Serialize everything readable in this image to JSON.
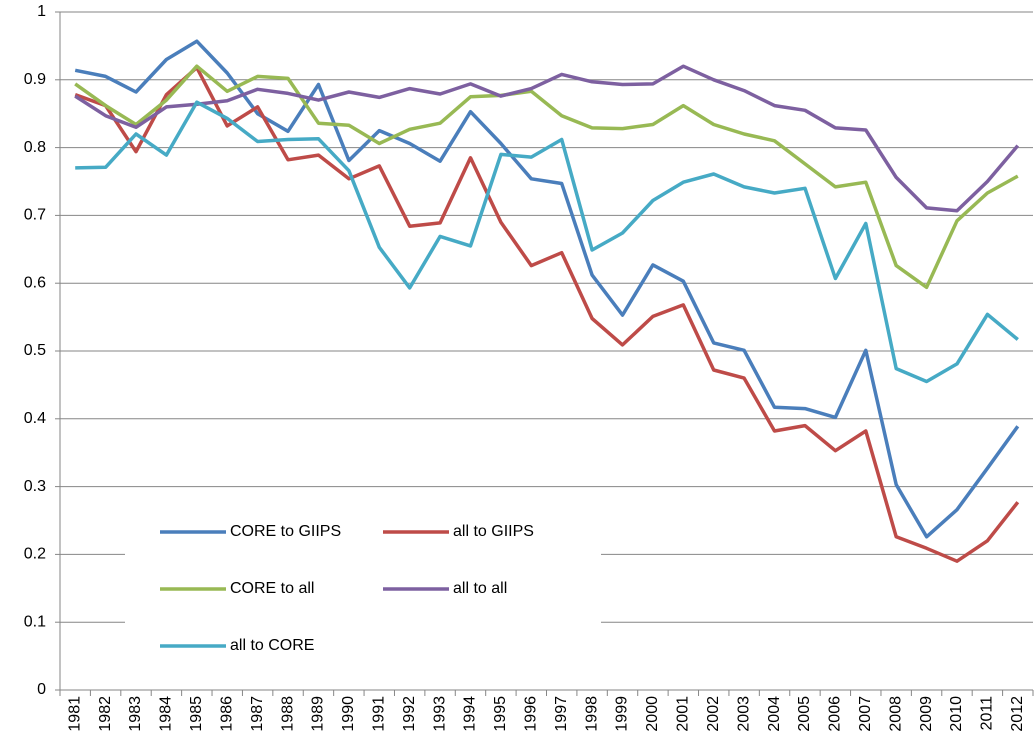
{
  "chart_data": {
    "type": "line",
    "categories": [
      "1981",
      "1982",
      "1983",
      "1984",
      "1985",
      "1986",
      "1987",
      "1988",
      "1989",
      "1990",
      "1991",
      "1992",
      "1993",
      "1994",
      "1995",
      "1996",
      "1997",
      "1998",
      "1999",
      "2000",
      "2001",
      "2002",
      "2003",
      "2004",
      "2005",
      "2006",
      "2007",
      "2008",
      "2009",
      "2010",
      "2011",
      "2012"
    ],
    "series": [
      {
        "name": "CORE to GIIPS",
        "color": "#4a7ebb",
        "values": [
          0.914,
          0.905,
          0.882,
          0.93,
          0.957,
          0.91,
          0.85,
          0.824,
          0.893,
          0.781,
          0.825,
          0.806,
          0.78,
          0.853,
          0.806,
          0.754,
          0.747,
          0.612,
          0.553,
          0.627,
          0.603,
          0.512,
          0.501,
          0.417,
          0.415,
          0.402,
          0.501,
          0.303,
          0.226,
          0.266,
          0.327,
          0.389
        ]
      },
      {
        "name": "all to GIIPS",
        "color": "#be4b48",
        "values": [
          0.878,
          0.862,
          0.794,
          0.878,
          0.918,
          0.832,
          0.86,
          0.782,
          0.789,
          0.754,
          0.773,
          0.684,
          0.689,
          0.785,
          0.69,
          0.626,
          0.645,
          0.548,
          0.509,
          0.551,
          0.568,
          0.472,
          0.46,
          0.382,
          0.39,
          0.353,
          0.382,
          0.226,
          0.209,
          0.19,
          0.22,
          0.277
        ]
      },
      {
        "name": "CORE to all",
        "color": "#98b954",
        "values": [
          0.894,
          0.862,
          0.834,
          0.87,
          0.92,
          0.883,
          0.905,
          0.902,
          0.836,
          0.833,
          0.806,
          0.827,
          0.836,
          0.875,
          0.877,
          0.883,
          0.847,
          0.829,
          0.828,
          0.834,
          0.862,
          0.834,
          0.82,
          0.81,
          0.776,
          0.742,
          0.749,
          0.626,
          0.594,
          0.692,
          0.733,
          0.758
        ]
      },
      {
        "name": "all to all",
        "color": "#7d60a0",
        "values": [
          0.876,
          0.847,
          0.83,
          0.86,
          0.864,
          0.869,
          0.886,
          0.88,
          0.87,
          0.882,
          0.874,
          0.887,
          0.879,
          0.894,
          0.876,
          0.887,
          0.908,
          0.897,
          0.893,
          0.894,
          0.92,
          0.9,
          0.884,
          0.862,
          0.855,
          0.829,
          0.826,
          0.756,
          0.711,
          0.707,
          0.75,
          0.803
        ]
      },
      {
        "name": "all to CORE",
        "color": "#46aac5",
        "values": [
          0.77,
          0.771,
          0.82,
          0.789,
          0.867,
          0.843,
          0.809,
          0.812,
          0.813,
          0.766,
          0.653,
          0.593,
          0.669,
          0.655,
          0.79,
          0.786,
          0.812,
          0.649,
          0.674,
          0.722,
          0.749,
          0.761,
          0.742,
          0.733,
          0.74,
          0.607,
          0.688,
          0.474,
          0.455,
          0.481,
          0.554,
          0.517
        ]
      }
    ],
    "ylim": [
      0,
      1
    ],
    "yticks": [
      0,
      0.1,
      0.2,
      0.3,
      0.4,
      0.5,
      0.6,
      0.7,
      0.8,
      0.9,
      1
    ],
    "grid": true,
    "legend": "lower left"
  }
}
